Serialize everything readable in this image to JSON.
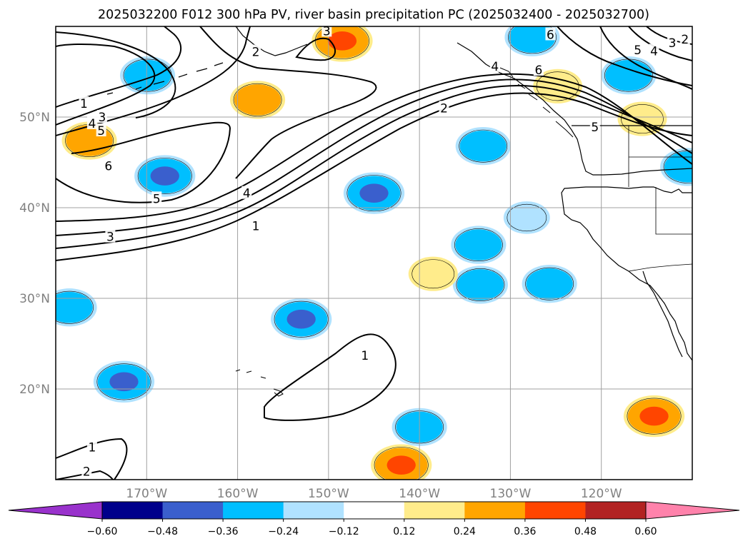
{
  "chart_data": {
    "type": "map-contour",
    "title": "2025032200 F012 300 hPa PV, river basin precipitation PC (2025032400 - 2025032700)",
    "projection": "PlateCarree",
    "lon_range": [
      -180,
      -110
    ],
    "lat_range": [
      10,
      60
    ],
    "grid": true,
    "lon_ticks": [
      {
        "value": -170,
        "label": "170°W"
      },
      {
        "value": -160,
        "label": "160°W"
      },
      {
        "value": -150,
        "label": "150°W"
      },
      {
        "value": -140,
        "label": "140°W"
      },
      {
        "value": -130,
        "label": "130°W"
      },
      {
        "value": -120,
        "label": "120°W"
      }
    ],
    "lat_ticks": [
      {
        "value": 20,
        "label": "20°N"
      },
      {
        "value": 30,
        "label": "30°N"
      },
      {
        "value": 40,
        "label": "40°N"
      },
      {
        "value": 50,
        "label": "50°N"
      }
    ],
    "colorbar": {
      "orientation": "horizontal",
      "extend": "both",
      "boundaries": [
        -0.6,
        -0.48,
        -0.36,
        -0.24,
        -0.12,
        0.12,
        0.24,
        0.36,
        0.48,
        0.6
      ],
      "tick_labels": [
        "−0.60",
        "−0.48",
        "−0.36",
        "−0.24",
        "−0.12",
        "0.12",
        "0.24",
        "0.36",
        "0.48",
        "0.60"
      ],
      "colors": [
        "#9932cc",
        "#00008b",
        "#3a5fcd",
        "#00bfff",
        "#b0e2ff",
        "#ffffff",
        "#ffec8b",
        "#ffa500",
        "#ff4500",
        "#b22222",
        "#ff82ab"
      ]
    },
    "contour_label_series": [
      {
        "name": "PV",
        "levels": [
          1,
          2,
          3,
          4,
          5,
          6
        ]
      }
    ],
    "contour_labels": [
      {
        "text": "2",
        "lon": -158,
        "lat": 57.2
      },
      {
        "text": "1",
        "lon": -176.9,
        "lat": 51.5
      },
      {
        "text": "3",
        "lon": -174.9,
        "lat": 50.0
      },
      {
        "text": "4",
        "lon": -176.0,
        "lat": 49.3
      },
      {
        "text": "5",
        "lon": -175.0,
        "lat": 48.5
      },
      {
        "text": "6",
        "lon": -174.2,
        "lat": 44.6
      },
      {
        "text": "5",
        "lon": -168.9,
        "lat": 41.0
      },
      {
        "text": "4",
        "lon": -159.0,
        "lat": 41.6
      },
      {
        "text": "3",
        "lon": -174.0,
        "lat": 36.8
      },
      {
        "text": "1",
        "lon": -158.0,
        "lat": 38.0
      },
      {
        "text": "2",
        "lon": -137.3,
        "lat": 51.0
      },
      {
        "text": "4",
        "lon": -131.7,
        "lat": 55.6
      },
      {
        "text": "6",
        "lon": -126.9,
        "lat": 55.2
      },
      {
        "text": "6",
        "lon": -125.6,
        "lat": 59.1
      },
      {
        "text": "5",
        "lon": -116.0,
        "lat": 57.4
      },
      {
        "text": "4",
        "lon": -114.2,
        "lat": 57.3
      },
      {
        "text": "3",
        "lon": -112.2,
        "lat": 58.2
      },
      {
        "text": "2",
        "lon": -110.8,
        "lat": 58.6
      },
      {
        "text": "5",
        "lon": -120.7,
        "lat": 48.9
      },
      {
        "text": "1",
        "lon": -146.0,
        "lat": 23.7
      },
      {
        "text": "1",
        "lon": -176.0,
        "lat": 13.6
      },
      {
        "text": "2",
        "lon": -176.6,
        "lat": 10.9
      },
      {
        "text": "3",
        "lon": -150.2,
        "lat": 59.5
      }
    ],
    "precip_anomalies": [
      {
        "lon": -168.0,
        "lat": 43.5,
        "value": -0.4
      },
      {
        "lon": -145.0,
        "lat": 41.6,
        "value": -0.4
      },
      {
        "lon": -172.5,
        "lat": 20.8,
        "value": -0.4
      },
      {
        "lon": -153.0,
        "lat": 27.7,
        "value": -0.4
      },
      {
        "lon": -140.0,
        "lat": 15.8,
        "value": -0.3
      },
      {
        "lon": -133.0,
        "lat": 46.8,
        "value": -0.3
      },
      {
        "lon": -133.3,
        "lat": 31.5,
        "value": -0.3
      },
      {
        "lon": -125.7,
        "lat": 31.6,
        "value": -0.3
      },
      {
        "lon": -133.5,
        "lat": 35.9,
        "value": -0.3
      },
      {
        "lon": -169.9,
        "lat": 54.6,
        "value": -0.3
      },
      {
        "lon": -117.0,
        "lat": 54.6,
        "value": -0.3
      },
      {
        "lon": -127.6,
        "lat": 58.8,
        "value": -0.3
      },
      {
        "lon": -178.5,
        "lat": 29.0,
        "value": -0.3
      },
      {
        "lon": -110.5,
        "lat": 44.5,
        "value": -0.3
      },
      {
        "lon": -128.2,
        "lat": 38.9,
        "value": -0.15
      },
      {
        "lon": -148.5,
        "lat": 58.4,
        "value": 0.4
      },
      {
        "lon": -142.0,
        "lat": 11.6,
        "value": 0.4
      },
      {
        "lon": -114.2,
        "lat": 17.0,
        "value": 0.4
      },
      {
        "lon": -157.8,
        "lat": 51.9,
        "value": 0.3
      },
      {
        "lon": -176.3,
        "lat": 47.4,
        "value": 0.3
      },
      {
        "lon": -138.5,
        "lat": 32.7,
        "value": 0.2
      },
      {
        "lon": -115.5,
        "lat": 49.8,
        "value": 0.2
      },
      {
        "lon": -124.8,
        "lat": 53.4,
        "value": 0.2
      }
    ]
  }
}
